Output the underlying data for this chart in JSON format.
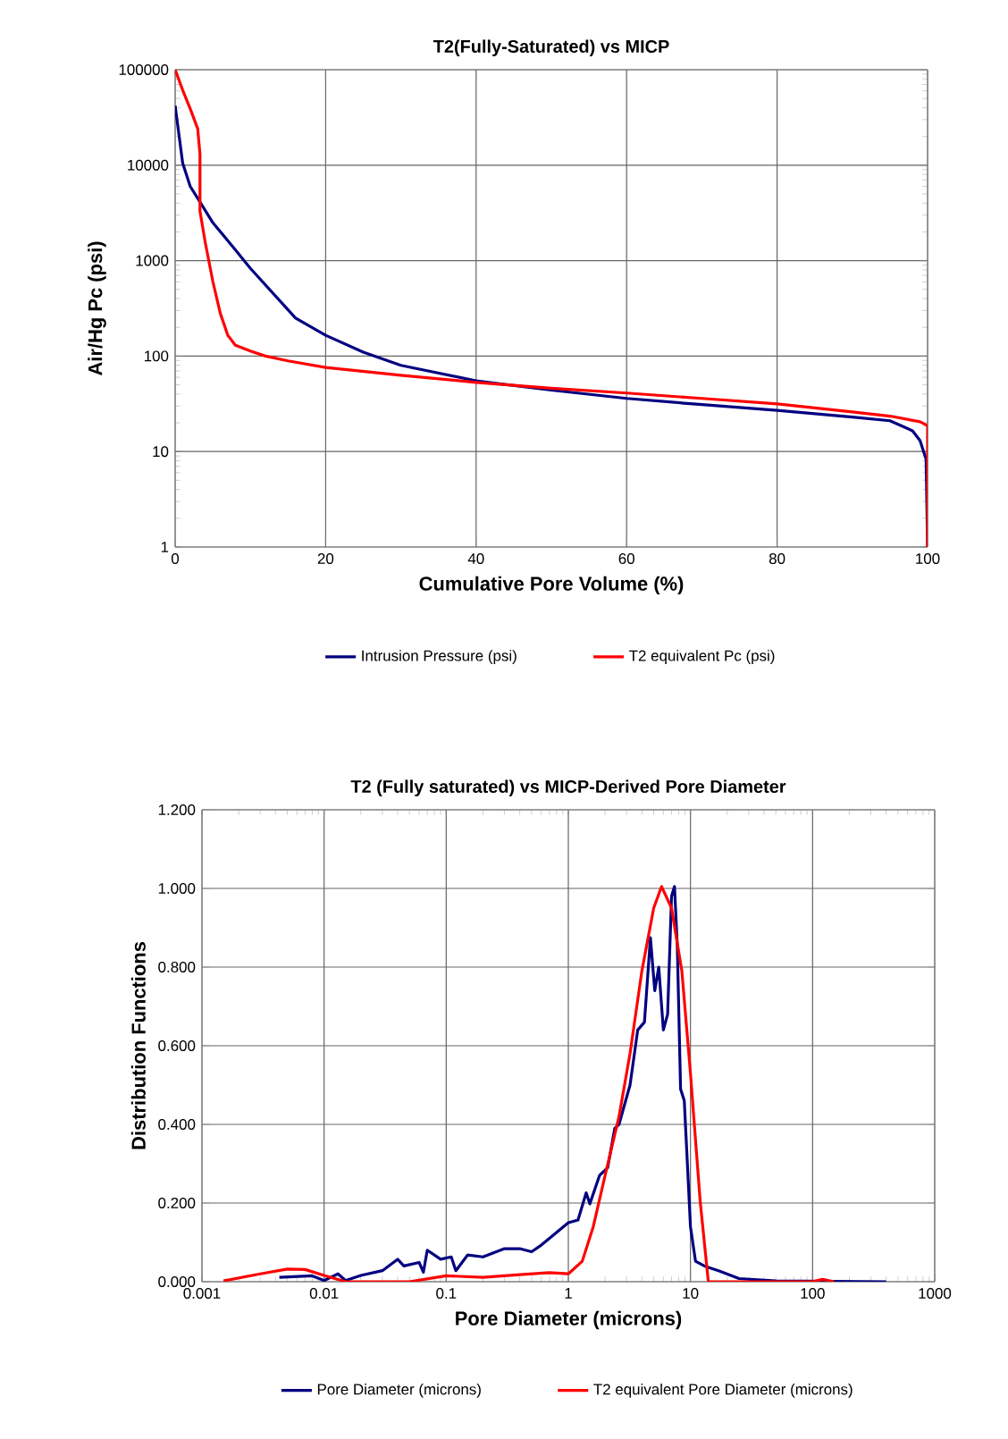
{
  "chart_data": [
    {
      "type": "line",
      "title": "T2(Fully-Saturated)  vs MICP",
      "xlabel": "Cumulative Pore Volume (%)",
      "ylabel": "Air/Hg Pc (psi)",
      "log": "y",
      "grid": true,
      "legend": "bottom",
      "xlim": [
        0,
        100
      ],
      "ylim": [
        1,
        100000
      ],
      "xticks": [
        0,
        20,
        40,
        60,
        80,
        100
      ],
      "yticks": [
        1,
        10,
        100,
        1000,
        10000,
        100000
      ],
      "series": [
        {
          "name": "Intrusion Pressure (psi)",
          "color": "#000080",
          "x": [
            0,
            1,
            2,
            3,
            5,
            8,
            10,
            16,
            20,
            25,
            30,
            40,
            50,
            60,
            70,
            80,
            90,
            95,
            98,
            99,
            99.8,
            100
          ],
          "values": [
            42000,
            10500,
            6000,
            4500,
            2500,
            1300,
            830,
            250,
            165,
            110,
            80,
            55,
            44,
            36,
            31,
            27,
            23,
            21,
            16.5,
            13,
            8.3,
            1
          ]
        },
        {
          "name": "T2 equivalent Pc (psi)",
          "color": "#ff0000",
          "x": [
            0,
            1,
            2,
            3,
            3.3,
            3.3,
            4,
            5,
            6,
            7,
            8,
            10,
            12,
            15,
            20,
            30,
            40,
            50,
            60,
            70,
            80,
            90,
            95,
            99,
            100,
            100
          ],
          "values": [
            100000,
            61000,
            39000,
            24000,
            13000,
            3300,
            1550,
            610,
            280,
            165,
            130,
            113,
            100,
            89,
            76,
            63,
            53,
            46,
            41,
            36,
            31.6,
            26,
            23.5,
            20.5,
            18.6,
            1
          ]
        }
      ]
    },
    {
      "type": "line",
      "title": "T2 (Fully saturated) vs MICP-Derived Pore Diameter",
      "xlabel": "Pore Diameter (microns)",
      "ylabel": "Distribution Functions",
      "log": "x",
      "grid": true,
      "legend": "bottom",
      "xlim": [
        0.001,
        1000
      ],
      "ylim": [
        0,
        1.2
      ],
      "xticks": [
        0.001,
        0.01,
        0.1,
        1,
        10,
        100,
        1000
      ],
      "yticks": [
        {
          "value": 0,
          "label": "0.000"
        },
        {
          "value": 0.2,
          "label": "0.200"
        },
        {
          "value": 0.4,
          "label": "0.400"
        },
        {
          "value": 0.6,
          "label": "0.600"
        },
        {
          "value": 0.8,
          "label": "0.800"
        },
        {
          "value": 1.0,
          "label": "1.000"
        },
        {
          "value": 1.2,
          "label": "1.200"
        }
      ],
      "series": [
        {
          "name": "Pore Diameter (microns)",
          "color": "#000080",
          "x": [
            0.0043,
            0.008,
            0.01,
            0.013,
            0.015,
            0.02,
            0.03,
            0.04,
            0.045,
            0.06,
            0.065,
            0.07,
            0.09,
            0.11,
            0.12,
            0.15,
            0.2,
            0.3,
            0.4,
            0.5,
            0.6,
            0.7,
            1.0,
            1.2,
            1.4,
            1.5,
            1.8,
            2.1,
            2.4,
            2.6,
            3.2,
            3.7,
            4.2,
            4.7,
            5.1,
            5.5,
            6.0,
            6.5,
            7.0,
            7.4,
            7.8,
            8.3,
            8.9,
            10,
            11,
            13,
            17,
            25,
            50,
            400
          ],
          "values": [
            0.011,
            0.015,
            0.003,
            0.02,
            0.003,
            0.016,
            0.028,
            0.057,
            0.04,
            0.049,
            0.024,
            0.08,
            0.057,
            0.063,
            0.028,
            0.068,
            0.063,
            0.084,
            0.084,
            0.076,
            0.093,
            0.11,
            0.15,
            0.157,
            0.226,
            0.198,
            0.27,
            0.29,
            0.39,
            0.4,
            0.5,
            0.64,
            0.66,
            0.875,
            0.74,
            0.8,
            0.64,
            0.68,
            0.98,
            1.005,
            0.855,
            0.49,
            0.46,
            0.14,
            0.052,
            0.04,
            0.028,
            0.008,
            0.002,
            0
          ]
        },
        {
          "name": "T2 equivalent Pore Diameter (microns)",
          "color": "#ff0000",
          "x": [
            0.0015,
            0.003,
            0.005,
            0.007,
            0.01,
            0.015,
            0.05,
            0.1,
            0.2,
            0.4,
            0.7,
            1.0,
            1.3,
            1.6,
            2.0,
            2.6,
            3.2,
            4.0,
            5.0,
            5.8,
            7.0,
            8.5,
            10,
            12,
            14,
            30,
            100,
            120,
            150
          ],
          "values": [
            0.002,
            0.02,
            0.032,
            0.031,
            0.016,
            0,
            0,
            0.015,
            0.011,
            0.018,
            0.023,
            0.02,
            0.052,
            0.14,
            0.27,
            0.42,
            0.58,
            0.79,
            0.95,
            1.005,
            0.95,
            0.79,
            0.53,
            0.206,
            0,
            0,
            0,
            0.006,
            0
          ]
        }
      ]
    }
  ]
}
